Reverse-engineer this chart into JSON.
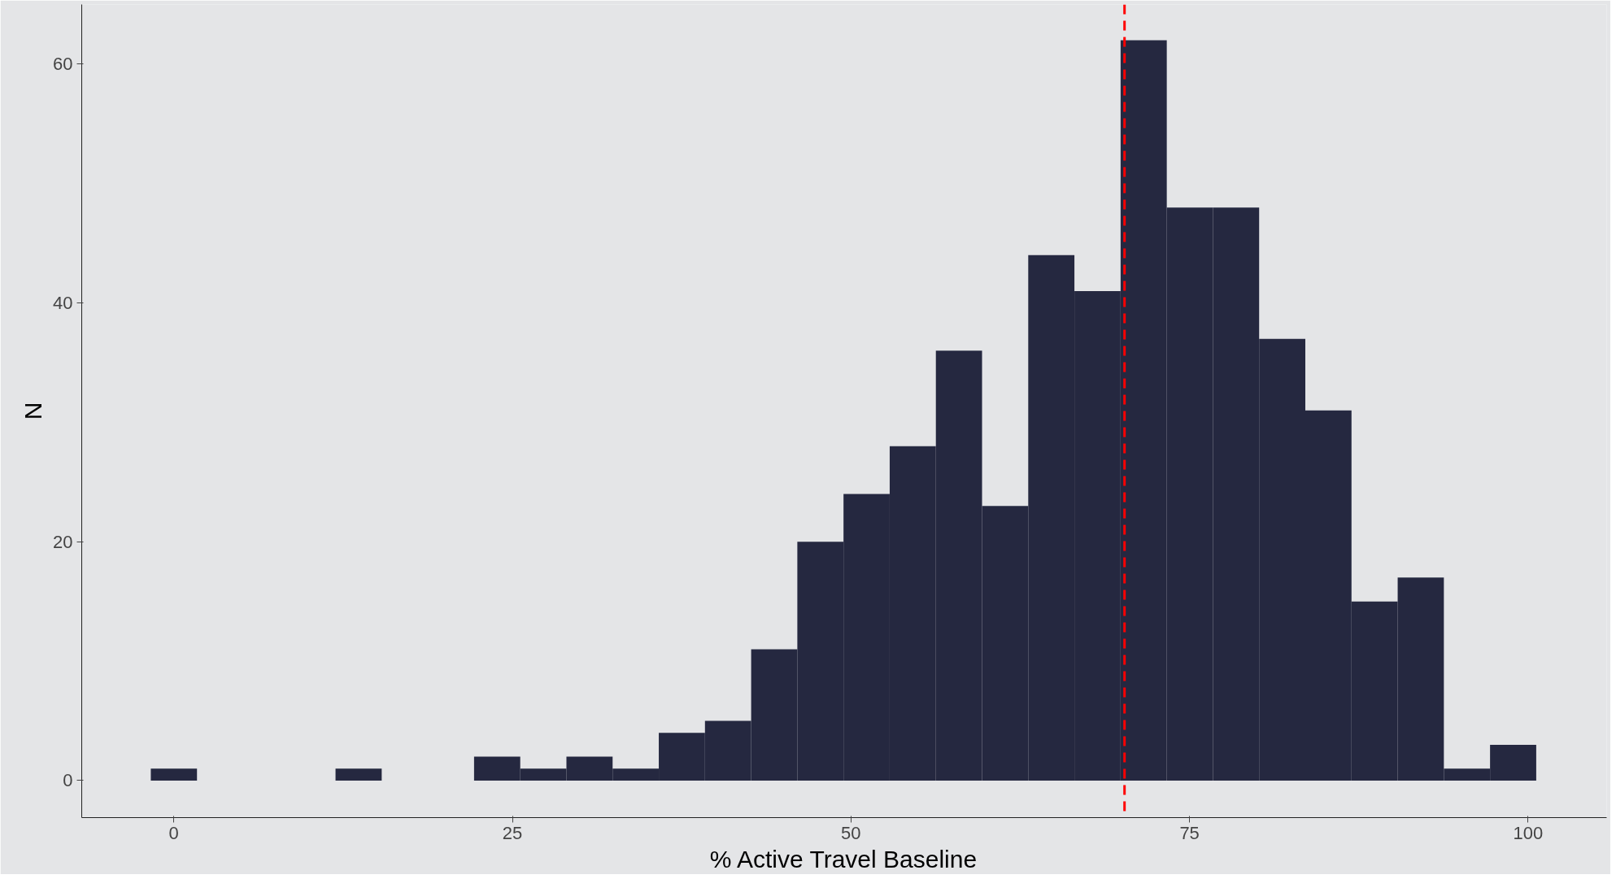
{
  "chart_data": {
    "type": "histogram",
    "xlabel": "% Active Travel Baseline",
    "ylabel": "N",
    "color": "#252840",
    "bins": [
      -1.7,
      1.71,
      5.12,
      8.53,
      11.94,
      15.35,
      18.76,
      22.17,
      25.58,
      28.99,
      32.4,
      35.81,
      39.22,
      42.63,
      46.04,
      49.45,
      52.86,
      56.27,
      59.68,
      63.09,
      66.5,
      69.91,
      73.32,
      76.73,
      80.14,
      83.55,
      86.96,
      90.37,
      93.78,
      97.19,
      100.6
    ],
    "values": [
      1,
      0,
      0,
      0,
      1,
      0,
      0,
      2,
      1,
      2,
      1,
      4,
      5,
      11,
      20,
      24,
      28,
      36,
      23,
      44,
      41,
      62,
      48,
      48,
      37,
      31,
      15,
      17,
      1,
      3
    ],
    "xlim": [
      -6.8,
      105.8
    ],
    "ylim": [
      -3.1,
      65
    ],
    "xticks": [
      0,
      25,
      50,
      75,
      100
    ],
    "yticks": [
      0,
      20,
      40,
      60
    ],
    "ref_lines": [
      {
        "axis": "x",
        "value": 70.2,
        "color": "#ff0000",
        "line_style": "dashed"
      }
    ]
  }
}
